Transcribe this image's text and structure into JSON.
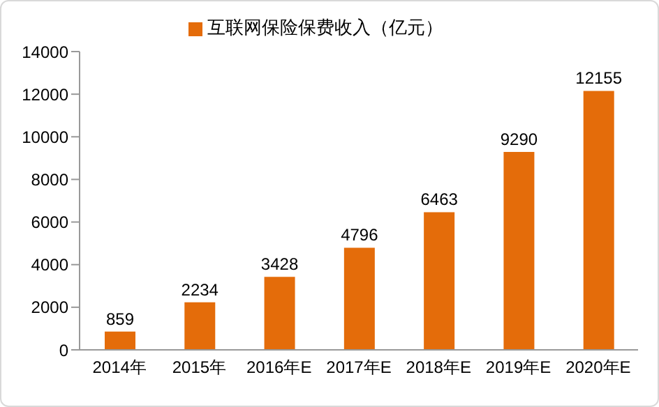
{
  "chart_data": {
    "type": "bar",
    "categories": [
      "2014年",
      "2015年",
      "2016年E",
      "2017年E",
      "2018年E",
      "2019年E",
      "2020年E"
    ],
    "series": [
      {
        "name": "互联网保险保费收入（亿元）",
        "color": "#e46c0a",
        "values": [
          859,
          2234,
          3428,
          4796,
          6463,
          9290,
          12155
        ]
      }
    ],
    "ylim": [
      0,
      14000
    ],
    "yticks": [
      0,
      2000,
      4000,
      6000,
      8000,
      10000,
      12000,
      14000
    ],
    "data_labels": true,
    "legend": "top",
    "grid": false
  }
}
